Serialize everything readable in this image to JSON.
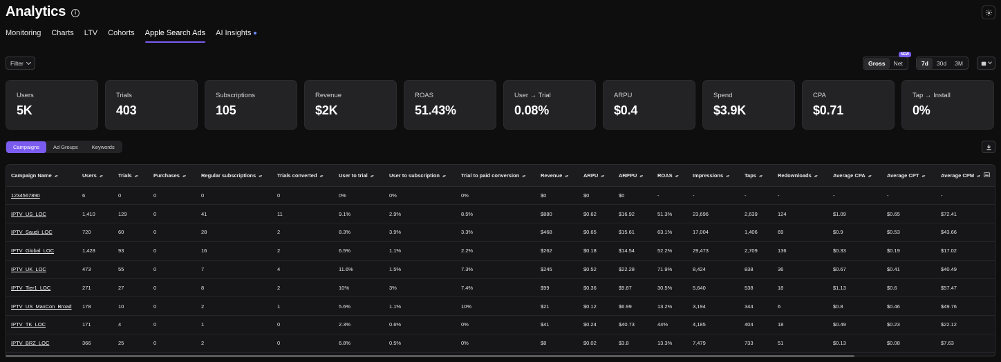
{
  "header": {
    "title": "Analytics",
    "info_icon": "info-icon",
    "settings_icon": "gear-icon"
  },
  "nav": {
    "tabs": [
      "Monitoring",
      "Charts",
      "LTV",
      "Cohorts",
      "Apple Search Ads",
      "AI Insights"
    ],
    "active": "Apple Search Ads"
  },
  "filter": {
    "label": "Filter"
  },
  "mode_toggle": {
    "options": [
      "Gross",
      "Net"
    ],
    "selected": "Gross",
    "badge": "NEW"
  },
  "range_toggle": {
    "options": [
      "7d",
      "30d",
      "3M"
    ],
    "selected": "7d"
  },
  "metrics": [
    {
      "label": "Users",
      "value": "5K"
    },
    {
      "label": "Trials",
      "value": "403"
    },
    {
      "label": "Subscriptions",
      "value": "105"
    },
    {
      "label": "Revenue",
      "value": "$2K"
    },
    {
      "label": "ROAS",
      "value": "51.43%"
    },
    {
      "label": "User → Trial",
      "value": "0.08%"
    },
    {
      "label": "ARPU",
      "value": "$0.4"
    },
    {
      "label": "Spend",
      "value": "$3.9K"
    },
    {
      "label": "CPA",
      "value": "$0.71"
    },
    {
      "label": "Tap → Install",
      "value": "0%"
    }
  ],
  "view_tabs": {
    "options": [
      "Campaigns",
      "Ad Groups",
      "Keywords"
    ],
    "selected": "Campaigns"
  },
  "table": {
    "columns": [
      "Campaign Name",
      "Users",
      "Trials",
      "Purchases",
      "Regular subscriptions",
      "Trials converted",
      "User to trial",
      "User to subscription",
      "Trial to paid conversion",
      "Revenue",
      "ARPU",
      "ARPPU",
      "ROAS",
      "Impressions",
      "Taps",
      "Redownloads",
      "Average CPA",
      "Average CPT",
      "Average CPM"
    ],
    "rows": [
      [
        "1234567890",
        "6",
        "0",
        "0",
        "0",
        "0",
        "0%",
        "0%",
        "0%",
        "$0",
        "$0",
        "$0",
        "-",
        "-",
        "-",
        "-",
        "-",
        "-",
        "-"
      ],
      [
        "IPTV_US_LOC",
        "1,410",
        "129",
        "0",
        "41",
        "11",
        "9.1%",
        "2.9%",
        "8.5%",
        "$880",
        "$0.62",
        "$16.92",
        "51.3%",
        "23,696",
        "2,639",
        "124",
        "$1.09",
        "$0.65",
        "$72.41"
      ],
      [
        "IPTV_Saudi_LOC",
        "720",
        "60",
        "0",
        "28",
        "2",
        "8.3%",
        "3.9%",
        "3.3%",
        "$468",
        "$0.65",
        "$15.61",
        "63.1%",
        "17,004",
        "1,406",
        "69",
        "$0.9",
        "$0.53",
        "$43.66"
      ],
      [
        "IPTV_Global_LOC",
        "1,428",
        "93",
        "0",
        "16",
        "2",
        "6.5%",
        "1.1%",
        "2.2%",
        "$262",
        "$0.18",
        "$14.54",
        "52.2%",
        "29,473",
        "2,709",
        "136",
        "$0.33",
        "$0.19",
        "$17.02"
      ],
      [
        "IPTV_UK_LOC",
        "473",
        "55",
        "0",
        "7",
        "4",
        "11.6%",
        "1.5%",
        "7.3%",
        "$245",
        "$0.52",
        "$22.28",
        "71.9%",
        "8,424",
        "838",
        "36",
        "$0.67",
        "$0.41",
        "$40.49"
      ],
      [
        "IPTV_Tier1_LOC",
        "271",
        "27",
        "0",
        "8",
        "2",
        "10%",
        "3%",
        "7.4%",
        "$99",
        "$0.36",
        "$9.87",
        "30.5%",
        "5,640",
        "538",
        "18",
        "$1.13",
        "$0.6",
        "$57.47"
      ],
      [
        "IPTV_US_MaxCon_Broad",
        "178",
        "10",
        "0",
        "2",
        "1",
        "5.6%",
        "1.1%",
        "10%",
        "$21",
        "$0.12",
        "$6.99",
        "13.2%",
        "3,194",
        "344",
        "6",
        "$0.8",
        "$0.46",
        "$49.76"
      ],
      [
        "IPTV_TK_LOC",
        "171",
        "4",
        "0",
        "1",
        "0",
        "2.3%",
        "0.6%",
        "0%",
        "$41",
        "$0.24",
        "$40.73",
        "44%",
        "4,185",
        "404",
        "18",
        "$0.49",
        "$0.23",
        "$22.12"
      ],
      [
        "IPTV_BRZ_LOC",
        "366",
        "25",
        "0",
        "2",
        "0",
        "6.8%",
        "0.5%",
        "0%",
        "$8",
        "$0.02",
        "$3.8",
        "13.3%",
        "7,479",
        "733",
        "51",
        "$0.13",
        "$0.08",
        "$7.63"
      ]
    ]
  },
  "colors": {
    "accent": "#7b5cf0",
    "background": "#0e0e0f",
    "card": "#232325"
  }
}
